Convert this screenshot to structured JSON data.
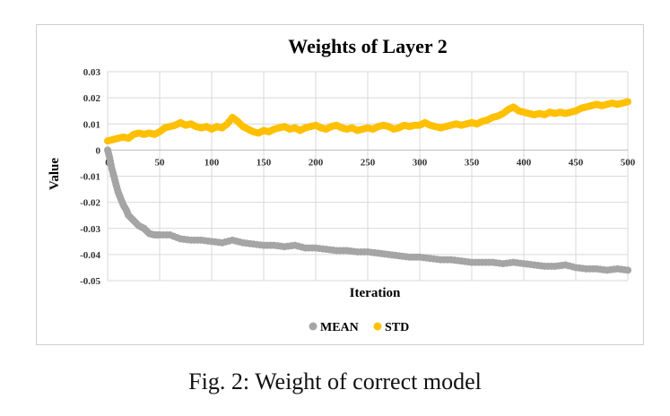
{
  "chart_data": {
    "type": "scatter",
    "title": "Weights of Layer 2",
    "xlabel": "Iteration",
    "ylabel": "Value",
    "xlim": [
      0,
      500
    ],
    "ylim": [
      -0.05,
      0.03
    ],
    "x_ticks": [
      0,
      50,
      100,
      150,
      200,
      250,
      300,
      350,
      400,
      450,
      500
    ],
    "y_ticks": [
      0.03,
      0.02,
      0.01,
      0,
      -0.01,
      -0.02,
      -0.03,
      -0.04,
      -0.05
    ],
    "x_tick_labels": [
      "0",
      "50",
      "100",
      "150",
      "200",
      "250",
      "300",
      "350",
      "400",
      "450",
      "500"
    ],
    "y_tick_labels": [
      "0.03",
      "0.02",
      "0.01",
      "0",
      "-0.01",
      "-0.02",
      "-0.03",
      "-0.04",
      "-0.05"
    ],
    "legend_position": "bottom",
    "series": [
      {
        "name": "MEAN",
        "color": "#a5a5a5",
        "points": [
          [
            0,
            0
          ],
          [
            2,
            -0.003
          ],
          [
            4,
            -0.007
          ],
          [
            6,
            -0.01
          ],
          [
            8,
            -0.013
          ],
          [
            10,
            -0.016
          ],
          [
            12,
            -0.018
          ],
          [
            15,
            -0.021
          ],
          [
            18,
            -0.023
          ],
          [
            20,
            -0.025
          ],
          [
            25,
            -0.027
          ],
          [
            30,
            -0.029
          ],
          [
            35,
            -0.03
          ],
          [
            40,
            -0.032
          ],
          [
            45,
            -0.0325
          ],
          [
            50,
            -0.0325
          ],
          [
            60,
            -0.0325
          ],
          [
            70,
            -0.034
          ],
          [
            80,
            -0.0345
          ],
          [
            90,
            -0.0345
          ],
          [
            100,
            -0.035
          ],
          [
            110,
            -0.0355
          ],
          [
            120,
            -0.0345
          ],
          [
            130,
            -0.0355
          ],
          [
            140,
            -0.036
          ],
          [
            150,
            -0.0365
          ],
          [
            160,
            -0.0365
          ],
          [
            170,
            -0.037
          ],
          [
            180,
            -0.0365
          ],
          [
            190,
            -0.0375
          ],
          [
            200,
            -0.0375
          ],
          [
            210,
            -0.038
          ],
          [
            220,
            -0.0385
          ],
          [
            230,
            -0.0385
          ],
          [
            240,
            -0.039
          ],
          [
            250,
            -0.039
          ],
          [
            260,
            -0.0395
          ],
          [
            270,
            -0.04
          ],
          [
            280,
            -0.0405
          ],
          [
            290,
            -0.041
          ],
          [
            300,
            -0.041
          ],
          [
            310,
            -0.0415
          ],
          [
            320,
            -0.042
          ],
          [
            330,
            -0.042
          ],
          [
            340,
            -0.0425
          ],
          [
            350,
            -0.043
          ],
          [
            360,
            -0.043
          ],
          [
            370,
            -0.043
          ],
          [
            380,
            -0.0435
          ],
          [
            390,
            -0.043
          ],
          [
            400,
            -0.0435
          ],
          [
            410,
            -0.044
          ],
          [
            420,
            -0.0445
          ],
          [
            430,
            -0.0445
          ],
          [
            440,
            -0.044
          ],
          [
            450,
            -0.045
          ],
          [
            460,
            -0.0455
          ],
          [
            470,
            -0.0455
          ],
          [
            480,
            -0.046
          ],
          [
            490,
            -0.0455
          ],
          [
            500,
            -0.046
          ]
        ]
      },
      {
        "name": "STD",
        "color": "#ffc000",
        "points": [
          [
            0,
            0.0035
          ],
          [
            5,
            0.004
          ],
          [
            10,
            0.0045
          ],
          [
            15,
            0.005
          ],
          [
            20,
            0.0045
          ],
          [
            25,
            0.006
          ],
          [
            30,
            0.0065
          ],
          [
            35,
            0.006
          ],
          [
            40,
            0.0065
          ],
          [
            45,
            0.006
          ],
          [
            50,
            0.007
          ],
          [
            55,
            0.0085
          ],
          [
            60,
            0.009
          ],
          [
            65,
            0.0095
          ],
          [
            70,
            0.0105
          ],
          [
            75,
            0.0095
          ],
          [
            80,
            0.01
          ],
          [
            85,
            0.009
          ],
          [
            90,
            0.0085
          ],
          [
            95,
            0.009
          ],
          [
            100,
            0.008
          ],
          [
            105,
            0.009
          ],
          [
            110,
            0.0085
          ],
          [
            115,
            0.01
          ],
          [
            120,
            0.0125
          ],
          [
            125,
            0.011
          ],
          [
            130,
            0.009
          ],
          [
            135,
            0.008
          ],
          [
            140,
            0.007
          ],
          [
            145,
            0.0065
          ],
          [
            150,
            0.0075
          ],
          [
            155,
            0.007
          ],
          [
            160,
            0.008
          ],
          [
            165,
            0.0085
          ],
          [
            170,
            0.009
          ],
          [
            175,
            0.008
          ],
          [
            180,
            0.0085
          ],
          [
            185,
            0.0075
          ],
          [
            190,
            0.0085
          ],
          [
            195,
            0.009
          ],
          [
            200,
            0.0095
          ],
          [
            205,
            0.0085
          ],
          [
            210,
            0.008
          ],
          [
            215,
            0.009
          ],
          [
            220,
            0.0095
          ],
          [
            225,
            0.0085
          ],
          [
            230,
            0.008
          ],
          [
            235,
            0.0085
          ],
          [
            240,
            0.0075
          ],
          [
            245,
            0.008
          ],
          [
            250,
            0.0085
          ],
          [
            255,
            0.008
          ],
          [
            260,
            0.009
          ],
          [
            265,
            0.0095
          ],
          [
            270,
            0.009
          ],
          [
            275,
            0.008
          ],
          [
            280,
            0.0085
          ],
          [
            285,
            0.0095
          ],
          [
            290,
            0.009
          ],
          [
            295,
            0.0095
          ],
          [
            300,
            0.0095
          ],
          [
            305,
            0.0105
          ],
          [
            310,
            0.0095
          ],
          [
            315,
            0.009
          ],
          [
            320,
            0.0085
          ],
          [
            325,
            0.009
          ],
          [
            330,
            0.0095
          ],
          [
            335,
            0.01
          ],
          [
            340,
            0.0095
          ],
          [
            345,
            0.01
          ],
          [
            350,
            0.0105
          ],
          [
            355,
            0.01
          ],
          [
            360,
            0.011
          ],
          [
            365,
            0.0115
          ],
          [
            370,
            0.0125
          ],
          [
            375,
            0.013
          ],
          [
            380,
            0.014
          ],
          [
            385,
            0.0155
          ],
          [
            390,
            0.0165
          ],
          [
            395,
            0.015
          ],
          [
            400,
            0.0145
          ],
          [
            405,
            0.014
          ],
          [
            410,
            0.0135
          ],
          [
            415,
            0.014
          ],
          [
            420,
            0.0135
          ],
          [
            425,
            0.0145
          ],
          [
            430,
            0.014
          ],
          [
            435,
            0.0145
          ],
          [
            440,
            0.014
          ],
          [
            445,
            0.0145
          ],
          [
            450,
            0.015
          ],
          [
            455,
            0.016
          ],
          [
            460,
            0.0165
          ],
          [
            465,
            0.017
          ],
          [
            470,
            0.0175
          ],
          [
            475,
            0.017
          ],
          [
            480,
            0.0175
          ],
          [
            485,
            0.018
          ],
          [
            490,
            0.0175
          ],
          [
            495,
            0.018
          ],
          [
            500,
            0.0185
          ]
        ]
      }
    ]
  },
  "caption": "Fig. 2: Weight of correct model"
}
